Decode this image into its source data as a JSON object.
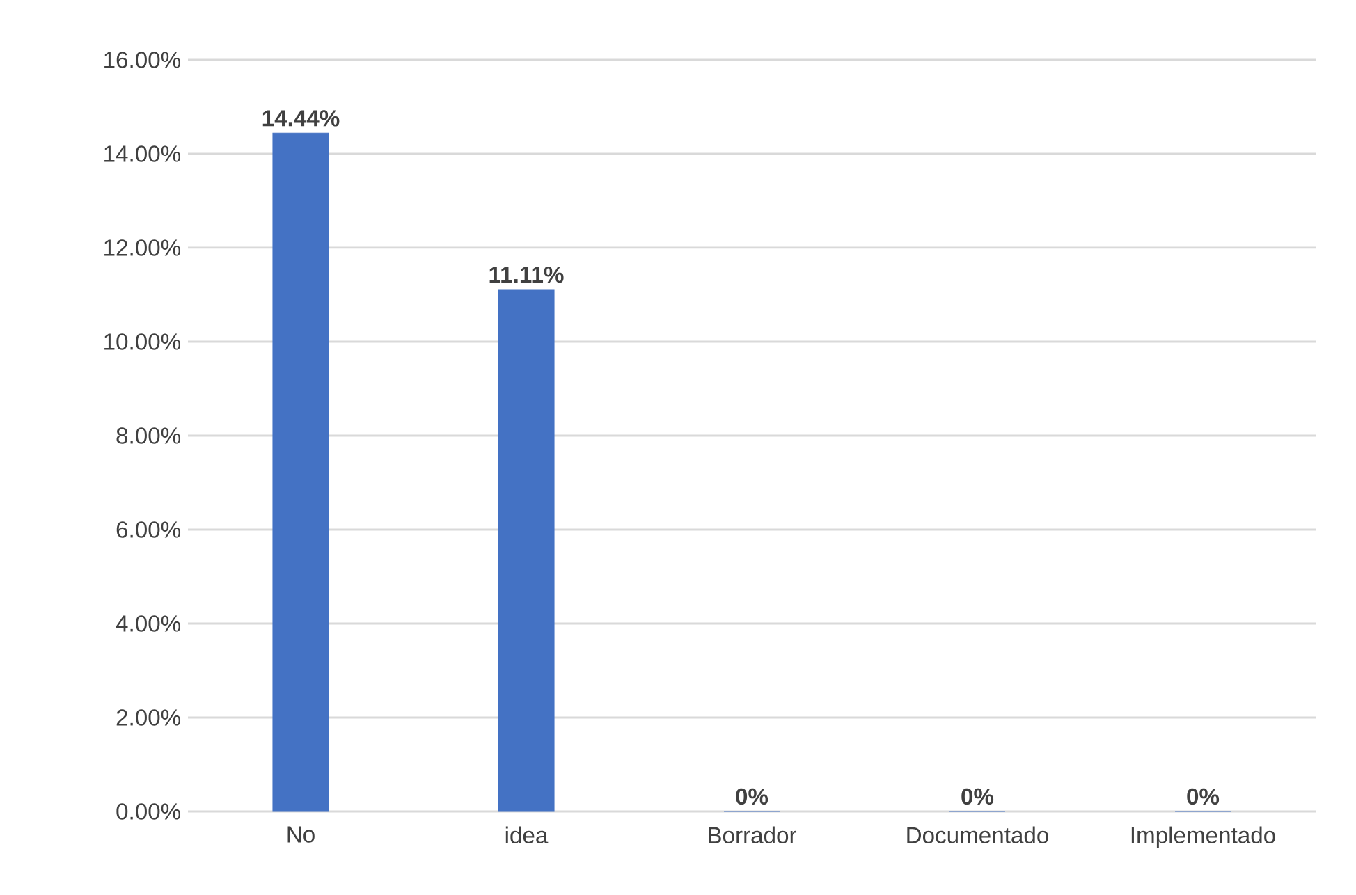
{
  "chart_data": {
    "type": "bar",
    "categories": [
      "No",
      "idea",
      "Borrador",
      "Documentado",
      "Implementado"
    ],
    "values": [
      14.44,
      11.11,
      0,
      0,
      0
    ],
    "value_labels": [
      "14.44%",
      "11.11%",
      "0%",
      "0%",
      "0%"
    ],
    "color": "#4472c4",
    "ylim": [
      0,
      16
    ],
    "yticks": [
      {
        "value": 0,
        "label": "0.00%"
      },
      {
        "value": 2,
        "label": "2.00%"
      },
      {
        "value": 4,
        "label": "4.00%"
      },
      {
        "value": 6,
        "label": "6.00%"
      },
      {
        "value": 8,
        "label": "8.00%"
      },
      {
        "value": 10,
        "label": "10.00%"
      },
      {
        "value": 12,
        "label": "12.00%"
      },
      {
        "value": 14,
        "label": "14.00%"
      },
      {
        "value": 16,
        "label": "16.00%"
      }
    ],
    "grid": "y"
  }
}
